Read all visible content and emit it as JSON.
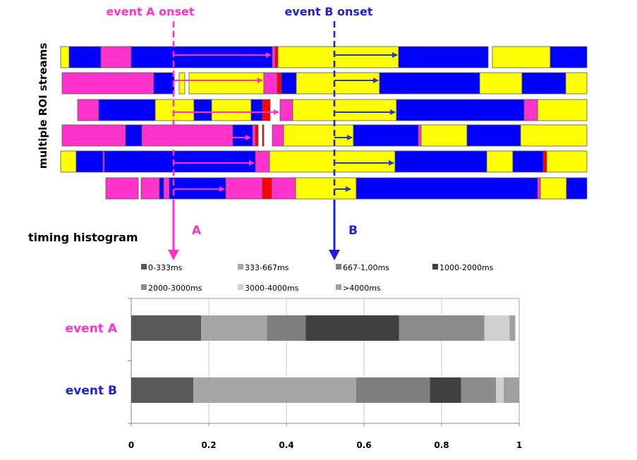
{
  "labels": {
    "event_a_onset": "event A onset",
    "event_b_onset": "event B onset",
    "roi_streams": "multiple ROI streams",
    "timing_histogram": "timing histogram",
    "arrow_a": "A",
    "arrow_b": "B"
  },
  "colors": {
    "magenta": "#ff33cc",
    "blue": "#0000ff",
    "yellow": "#ffff00",
    "red": "#ff0000",
    "event_a_label": "#ff33cc",
    "event_b_label": "#1f1fd0"
  },
  "streams": [
    [
      [
        "y",
        86,
        98
      ],
      [
        "b",
        98,
        143
      ],
      [
        "m",
        143,
        186
      ],
      [
        "b",
        186,
        386
      ],
      [
        "m",
        386,
        390
      ],
      [
        "r",
        390,
        394
      ],
      [
        "y",
        394,
        565
      ],
      [
        "b",
        565,
        692
      ],
      [
        "y",
        698,
        780
      ],
      [
        "b",
        780,
        832
      ]
    ],
    [
      [
        "m",
        88,
        218
      ],
      [
        "b",
        218,
        247
      ],
      [
        "y",
        254,
        262
      ],
      [
        "y",
        268,
        374
      ],
      [
        "m",
        374,
        393
      ],
      [
        "r",
        393,
        399
      ],
      [
        "b",
        399,
        420
      ],
      [
        "y",
        420,
        538
      ],
      [
        "b",
        538,
        680
      ],
      [
        "y",
        680,
        740
      ],
      [
        "b",
        740,
        802
      ],
      [
        "y",
        802,
        832
      ]
    ],
    [
      [
        "m",
        110,
        140
      ],
      [
        "b",
        140,
        220
      ],
      [
        "y",
        220,
        275
      ],
      [
        "b",
        275,
        300
      ],
      [
        "y",
        300,
        356
      ],
      [
        "b",
        356,
        372
      ],
      [
        "r",
        372,
        383
      ],
      [
        "m",
        397,
        415
      ],
      [
        "y",
        415,
        562
      ],
      [
        "b",
        562,
        743
      ],
      [
        "m",
        743,
        762
      ],
      [
        "y",
        762,
        832
      ]
    ],
    [
      [
        "m",
        88,
        178
      ],
      [
        "b",
        178,
        201
      ],
      [
        "m",
        201,
        330
      ],
      [
        "b",
        330,
        358
      ],
      [
        "m",
        358,
        362
      ],
      [
        "r",
        362,
        366
      ],
      [
        "r",
        372,
        374
      ],
      [
        "m",
        386,
        402
      ],
      [
        "y",
        402,
        501
      ],
      [
        "b",
        501,
        593
      ],
      [
        "m",
        593,
        597
      ],
      [
        "y",
        597,
        662
      ],
      [
        "b",
        662,
        738
      ],
      [
        "y",
        738,
        832
      ]
    ],
    [
      [
        "y",
        86,
        108
      ],
      [
        "b",
        108,
        146
      ],
      [
        "m",
        146,
        148
      ],
      [
        "b",
        148,
        362
      ],
      [
        "m",
        362,
        382
      ],
      [
        "y",
        382,
        560
      ],
      [
        "b",
        560,
        690
      ],
      [
        "y",
        690,
        727
      ],
      [
        "b",
        727,
        770
      ],
      [
        "r",
        770,
        775
      ],
      [
        "y",
        775,
        832
      ]
    ],
    [
      [
        "m",
        150,
        196
      ],
      [
        "m",
        200,
        226
      ],
      [
        "b",
        226,
        232
      ],
      [
        "m",
        232,
        240
      ],
      [
        "b",
        240,
        320
      ],
      [
        "m",
        320,
        372
      ],
      [
        "r",
        372,
        385
      ],
      [
        "m",
        385,
        419
      ],
      [
        "y",
        419,
        505
      ],
      [
        "b",
        505,
        762
      ],
      [
        "m",
        762,
        766
      ],
      [
        "y",
        766,
        803
      ],
      [
        "b",
        803,
        832
      ]
    ]
  ],
  "arrows": [
    {
      "event": "A",
      "row": 0,
      "x1": 247,
      "x2": 384
    },
    {
      "event": "A",
      "row": 1,
      "x1": 247,
      "x2": 372
    },
    {
      "event": "A",
      "row": 2,
      "x1": 247,
      "x2": 395
    },
    {
      "event": "A",
      "row": 3,
      "x1": 247,
      "x2": 355
    },
    {
      "event": "A",
      "row": 4,
      "x1": 247,
      "x2": 360
    },
    {
      "event": "A",
      "row": 5,
      "x1": 247,
      "x2": 318
    },
    {
      "event": "B",
      "row": 0,
      "x1": 474,
      "x2": 563
    },
    {
      "event": "B",
      "row": 1,
      "x1": 474,
      "x2": 536
    },
    {
      "event": "B",
      "row": 2,
      "x1": 474,
      "x2": 560
    },
    {
      "event": "B",
      "row": 3,
      "x1": 474,
      "x2": 499
    },
    {
      "event": "B",
      "row": 4,
      "x1": 474,
      "x2": 558
    },
    {
      "event": "B",
      "row": 5,
      "x1": 474,
      "x2": 497
    }
  ],
  "chart_data": {
    "type": "bar",
    "orientation": "horizontal",
    "stacked": true,
    "categories": [
      "event A",
      "event B"
    ],
    "category_colors": [
      "#ff33cc",
      "#1f1fd0"
    ],
    "series": [
      {
        "name": "0-333ms",
        "color": "#595959",
        "values": [
          0.18,
          0.16
        ]
      },
      {
        "name": "333-667ms",
        "color": "#a6a6a6",
        "values": [
          0.17,
          0.42
        ]
      },
      {
        "name": "667-1,00ms",
        "color": "#7f7f7f",
        "values": [
          0.1,
          0.19
        ]
      },
      {
        "name": "1000-2000ms",
        "color": "#404040",
        "values": [
          0.24,
          0.08
        ]
      },
      {
        "name": "2000-3000ms",
        "color": "#8c8c8c",
        "values": [
          0.22,
          0.09
        ]
      },
      {
        "name": "3000-4000ms",
        "color": "#d0d0d0",
        "values": [
          0.065,
          0.02
        ]
      },
      {
        "name": ">4000ms",
        "color": "#a0a0a0",
        "values": [
          0.015,
          0.04
        ]
      }
    ],
    "xlim": [
      0,
      1
    ],
    "x_ticks": [
      "0",
      "0.2",
      "0.4",
      "0.6",
      "0.8",
      "1"
    ],
    "grid": true,
    "legend_position": "top"
  }
}
